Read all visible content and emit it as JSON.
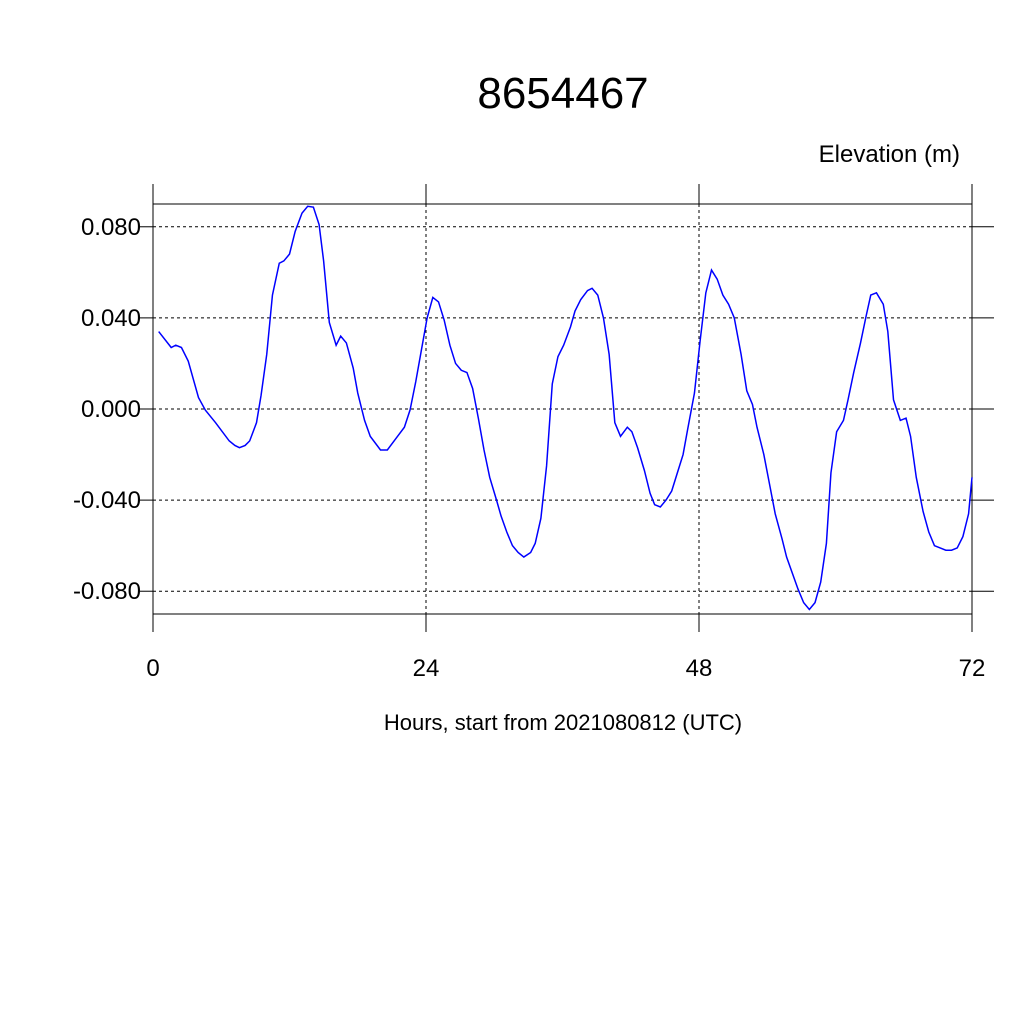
{
  "chart_data": {
    "type": "line",
    "title": "8654467",
    "subtitle": "Elevation (m)",
    "x_label": "Hours, start from 2021080812 (UTC)",
    "xlim": [
      0,
      72
    ],
    "xticks": [
      0,
      24,
      48,
      72
    ],
    "ylim": [
      -0.09,
      0.09
    ],
    "yticks": [
      {
        "value": -0.08,
        "label": "-0.080"
      },
      {
        "value": -0.04,
        "label": "-0.040"
      },
      {
        "value": 0,
        "label": "0.000"
      },
      {
        "value": 0.04,
        "label": "0.040"
      },
      {
        "value": 0.08,
        "label": "0.080"
      }
    ],
    "grid": true,
    "series": [
      {
        "color": "#0000ff",
        "x": [
          0.5,
          1.6,
          2.0,
          2.5,
          3.1,
          4.0,
          4.6,
          5.5,
          6.7,
          7.2,
          7.6,
          8.1,
          8.5,
          9.1,
          9.5,
          10.0,
          10.5,
          11.1,
          11.5,
          12.0,
          12.5,
          13.1,
          13.6,
          14.1,
          14.6,
          15.0,
          15.5,
          16.1,
          16.5,
          17.0,
          17.6,
          18.0,
          18.6,
          19.1,
          20.0,
          20.6,
          21.5,
          22.1,
          22.6,
          23.1,
          23.6,
          24.1,
          24.6,
          25.1,
          25.6,
          26.1,
          26.6,
          27.1,
          27.6,
          28.1,
          28.6,
          29.1,
          29.6,
          30.2,
          30.6,
          31.1,
          31.6,
          32.1,
          32.6,
          33.2,
          33.6,
          34.1,
          34.6,
          35.1,
          35.6,
          36.1,
          36.7,
          37.1,
          37.6,
          38.2,
          38.6,
          39.1,
          39.6,
          40.1,
          40.6,
          41.1,
          41.7,
          42.1,
          42.6,
          43.2,
          43.7,
          44.1,
          44.6,
          45.1,
          45.6,
          46.1,
          46.6,
          47.0,
          47.6,
          48.1,
          48.6,
          49.1,
          49.6,
          50.1,
          50.6,
          51.1,
          51.7,
          52.2,
          52.7,
          53.1,
          53.7,
          54.2,
          54.7,
          55.3,
          55.7,
          56.2,
          56.7,
          57.2,
          57.7,
          58.2,
          58.7,
          59.2,
          59.6,
          60.1,
          60.7,
          61.1,
          61.6,
          62.2,
          62.7,
          63.1,
          63.6,
          64.2,
          64.6,
          65.1,
          65.7,
          66.2,
          66.6,
          67.1,
          67.7,
          68.2,
          68.7,
          69.2,
          69.7,
          70.2,
          70.7,
          71.2,
          71.7,
          72
        ],
        "values": [
          0.034,
          0.027,
          0.028,
          0.027,
          0.021,
          0.005,
          -0.0005,
          -0.006,
          -0.014,
          -0.016,
          -0.017,
          -0.016,
          -0.014,
          -0.006,
          0.006,
          0.024,
          0.05,
          0.064,
          0.065,
          0.068,
          0.078,
          0.086,
          0.089,
          0.0886,
          0.081,
          0.065,
          0.038,
          0.028,
          0.032,
          0.029,
          0.018,
          0.007,
          -0.005,
          -0.012,
          -0.018,
          -0.018,
          -0.012,
          -0.008,
          -0.0004,
          0.012,
          0.026,
          0.04,
          0.049,
          0.047,
          0.039,
          0.028,
          0.02,
          0.017,
          0.016,
          0.009,
          -0.004,
          -0.018,
          -0.03,
          -0.04,
          -0.047,
          -0.054,
          -0.06,
          -0.063,
          -0.065,
          -0.063,
          -0.059,
          -0.048,
          -0.025,
          0.011,
          0.023,
          0.028,
          0.036,
          0.043,
          0.048,
          0.052,
          0.053,
          0.05,
          0.04,
          0.024,
          -0.006,
          -0.012,
          -0.008,
          -0.01,
          -0.017,
          -0.027,
          -0.037,
          -0.042,
          -0.043,
          -0.04,
          -0.036,
          -0.028,
          -0.02,
          -0.009,
          0.007,
          0.03,
          0.051,
          0.061,
          0.057,
          0.05,
          0.046,
          0.04,
          0.024,
          0.008,
          0.002,
          -0.008,
          -0.02,
          -0.033,
          -0.046,
          -0.057,
          -0.065,
          -0.072,
          -0.079,
          -0.085,
          -0.088,
          -0.085,
          -0.076,
          -0.059,
          -0.028,
          -0.01,
          -0.005,
          0.004,
          0.016,
          0.029,
          0.041,
          0.05,
          0.051,
          0.046,
          0.034,
          0.004,
          -0.005,
          -0.004,
          -0.012,
          -0.03,
          -0.045,
          -0.054,
          -0.06,
          -0.061,
          -0.062,
          -0.062,
          -0.061,
          -0.056,
          -0.046,
          -0.03
        ]
      }
    ]
  }
}
